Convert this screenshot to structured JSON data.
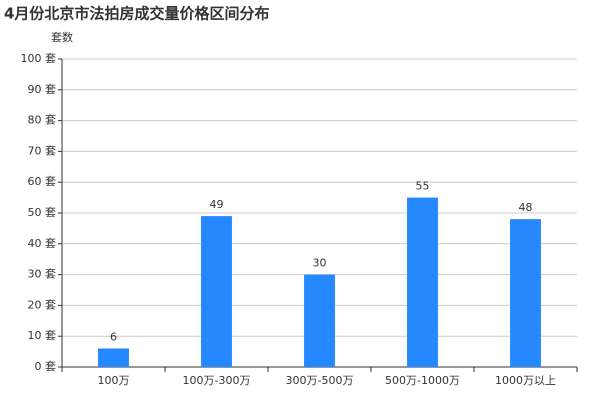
{
  "chart_data": {
    "type": "bar",
    "title": "4月份北京市法拍房成交量价格区间分布",
    "y_label": "套数",
    "categories": [
      "100万",
      "100万-300万",
      "300万-500万",
      "500万-1000万",
      "1000万以上"
    ],
    "values": [
      6,
      49,
      30,
      55,
      48
    ],
    "color": "#2688ff",
    "ylim": [
      0,
      100
    ],
    "yticks": [
      {
        "value": 0,
        "label": "0 套"
      },
      {
        "value": 10,
        "label": "10 套"
      },
      {
        "value": 20,
        "label": "20 套"
      },
      {
        "value": 30,
        "label": "30 套"
      },
      {
        "value": 40,
        "label": "40 套"
      },
      {
        "value": 50,
        "label": "50 套"
      },
      {
        "value": 60,
        "label": "60 套"
      },
      {
        "value": 70,
        "label": "70 套"
      },
      {
        "value": 80,
        "label": "80 套"
      },
      {
        "value": 90,
        "label": "90 套"
      },
      {
        "value": 100,
        "label": "100 套"
      }
    ],
    "grid": true
  }
}
